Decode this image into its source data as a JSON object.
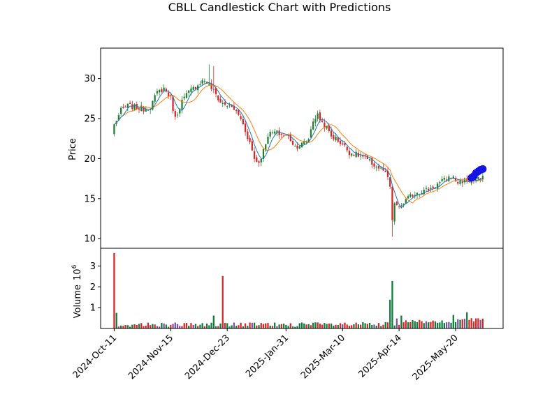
{
  "chart_data": {
    "type": "candlestick",
    "title": "CBLL Candlestick Chart with Predictions",
    "price_panel": {
      "ylabel": "Price",
      "ylim": [
        8.8,
        33.8
      ],
      "yticks": [
        10,
        15,
        20,
        25,
        30
      ]
    },
    "volume_panel": {
      "ylabel": "Volume",
      "scale_label": "10",
      "scale_exponent": "6",
      "ylim": [
        0,
        3.85
      ],
      "yticks": [
        1,
        2,
        3
      ]
    },
    "xlim": [
      -6,
      172
    ],
    "xticks": [
      {
        "index": 0,
        "label": "2024-Oct-11"
      },
      {
        "index": 25,
        "label": "2024-Nov-15"
      },
      {
        "index": 50,
        "label": "2024-Dec-23"
      },
      {
        "index": 76,
        "label": "2025-Jan-31"
      },
      {
        "index": 101,
        "label": "2025-Mar-10"
      },
      {
        "index": 126,
        "label": "2025-Apr-14"
      },
      {
        "index": 151,
        "label": "2025-May-20"
      }
    ],
    "colors": {
      "up": "#1f7f2f",
      "down": "#d62728",
      "ma_short": "#1f77b4",
      "ma_long": "#ff7f0e",
      "prediction": "#1414e6",
      "volume_up": "#0e7a3c",
      "volume_down": "#d62728",
      "volume_other": "#7c4fa0"
    },
    "close_anchors": [
      [
        0,
        24.2
      ],
      [
        3,
        26.0
      ],
      [
        6,
        26.6
      ],
      [
        10,
        26.4
      ],
      [
        13,
        26.2
      ],
      [
        16,
        26.5
      ],
      [
        19,
        28.2
      ],
      [
        22,
        28.8
      ],
      [
        25,
        27.5
      ],
      [
        27,
        25.0
      ],
      [
        30,
        27.2
      ],
      [
        33,
        28.3
      ],
      [
        36,
        29.0
      ],
      [
        38,
        29.5
      ],
      [
        40,
        29.8
      ],
      [
        42,
        29.2
      ],
      [
        45,
        28.0
      ],
      [
        47,
        27.0
      ],
      [
        50,
        26.7
      ],
      [
        53,
        26.2
      ],
      [
        56,
        25.0
      ],
      [
        58,
        23.5
      ],
      [
        60,
        22.0
      ],
      [
        62,
        20.0
      ],
      [
        64,
        19.5
      ],
      [
        66,
        21.0
      ],
      [
        68,
        23.0
      ],
      [
        71,
        23.3
      ],
      [
        74,
        23.0
      ],
      [
        77,
        22.8
      ],
      [
        80,
        21.5
      ],
      [
        83,
        21.8
      ],
      [
        86,
        22.5
      ],
      [
        88,
        24.8
      ],
      [
        90,
        25.4
      ],
      [
        92,
        24.5
      ],
      [
        94,
        23.8
      ],
      [
        96,
        22.8
      ],
      [
        98,
        22.5
      ],
      [
        101,
        21.8
      ],
      [
        104,
        20.8
      ],
      [
        107,
        20.5
      ],
      [
        110,
        20.2
      ],
      [
        113,
        19.6
      ],
      [
        116,
        19.0
      ],
      [
        119,
        18.5
      ],
      [
        121,
        17.5
      ],
      [
        122,
        16.5
      ],
      [
        123,
        12.0
      ],
      [
        124,
        14.5
      ],
      [
        126,
        13.8
      ],
      [
        128,
        14.5
      ],
      [
        131,
        15.3
      ],
      [
        134,
        15.8
      ],
      [
        137,
        16.0
      ],
      [
        140,
        16.3
      ],
      [
        143,
        16.8
      ],
      [
        146,
        17.3
      ],
      [
        149,
        17.8
      ],
      [
        152,
        17.0
      ],
      [
        155,
        17.3
      ],
      [
        158,
        17.2
      ],
      [
        161,
        17.4
      ],
      [
        163,
        17.5
      ]
    ],
    "volume_spikes": [
      [
        0,
        3.62
      ],
      [
        1,
        0.75
      ],
      [
        44,
        0.62
      ],
      [
        48,
        2.52
      ],
      [
        122,
        1.38
      ],
      [
        123,
        2.28
      ],
      [
        125,
        0.48
      ],
      [
        127,
        0.62
      ],
      [
        150,
        0.65
      ],
      [
        156,
        0.78
      ]
    ],
    "predictions": [
      {
        "index": 158,
        "value": 17.6
      },
      {
        "index": 159,
        "value": 17.8
      },
      {
        "index": 160,
        "value": 18.2
      },
      {
        "index": 161,
        "value": 18.4
      },
      {
        "index": 162,
        "value": 18.6
      },
      {
        "index": 163,
        "value": 18.7
      }
    ]
  }
}
